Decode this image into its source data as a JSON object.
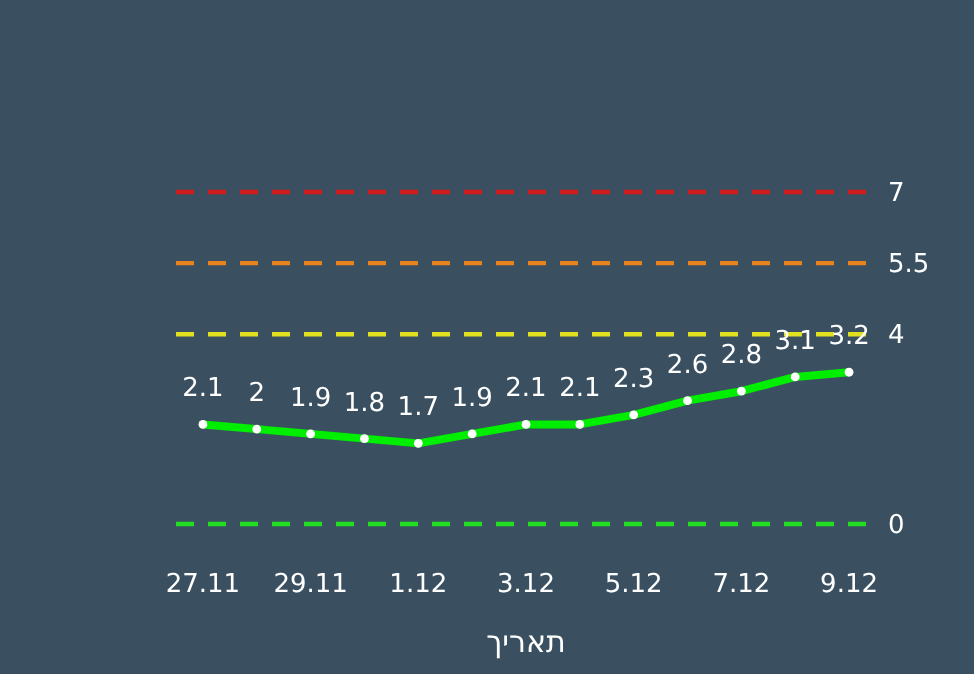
{
  "chart_data": {
    "type": "line",
    "xlabel": "תאריך",
    "categories": [
      "27.11",
      null,
      "29.11",
      null,
      "1.12",
      null,
      "3.12",
      null,
      "5.12",
      null,
      "7.12",
      null,
      "9.12"
    ],
    "series": [
      {
        "color": "#00ee00",
        "values": [
          2.1,
          2,
          1.9,
          1.8,
          1.7,
          1.9,
          2.1,
          2.1,
          2.3,
          2.6,
          2.8,
          3.1,
          3.2
        ]
      }
    ],
    "tick_labels": "x",
    "data_labels": true,
    "marker": "circle",
    "line_style": "solid",
    "ref_lines": [
      {
        "axis": "y",
        "value": 7,
        "label": "7",
        "color": "#d01c1c",
        "line_style": "dashed"
      },
      {
        "axis": "y",
        "value": 5.5,
        "label": "5.5",
        "color": "#e8821e",
        "line_style": "dashed"
      },
      {
        "axis": "y",
        "value": 4,
        "label": "4",
        "color": "#e0e020",
        "line_style": "dashed"
      },
      {
        "axis": "y",
        "value": 0,
        "label": "0",
        "color": "#22dd22",
        "line_style": "dashed"
      }
    ]
  }
}
